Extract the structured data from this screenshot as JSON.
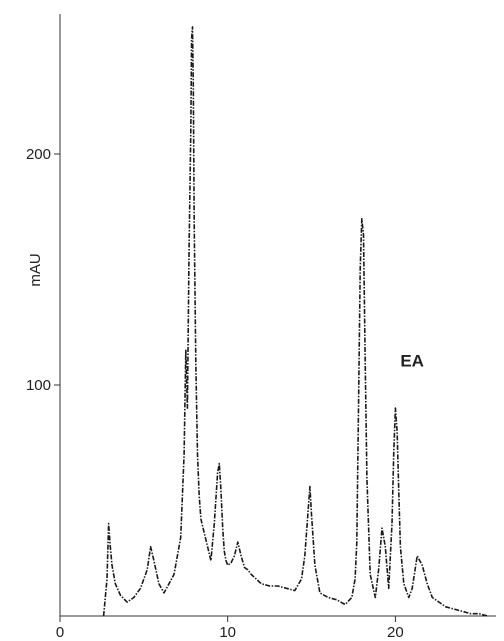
{
  "chart_data": {
    "type": "line",
    "title": "",
    "xlabel": "",
    "ylabel": "mAU",
    "xlim": [
      0,
      26
    ],
    "ylim": [
      0,
      255
    ],
    "x_ticks": [
      0,
      10,
      20
    ],
    "y_ticks": [
      100,
      200
    ],
    "grid": false,
    "annotations": [
      {
        "text": "EA",
        "x": 21,
        "y": 108
      }
    ],
    "series": [
      {
        "name": "",
        "x": [
          2.6,
          2.8,
          2.9,
          3.0,
          3.1,
          3.3,
          3.6,
          4.0,
          4.4,
          4.8,
          5.2,
          5.4,
          5.6,
          5.9,
          6.2,
          6.5,
          6.8,
          7.0,
          7.2,
          7.4,
          7.5,
          7.6,
          7.7,
          7.8,
          7.85,
          7.9,
          7.95,
          8.0,
          8.1,
          8.2,
          8.3,
          8.4,
          8.6,
          8.8,
          9.0,
          9.2,
          9.4,
          9.5,
          9.6,
          9.7,
          9.8,
          9.9,
          10.0,
          10.2,
          10.4,
          10.6,
          10.8,
          11.0,
          11.2,
          11.4,
          11.7,
          12.0,
          12.5,
          13.0,
          13.5,
          14.0,
          14.4,
          14.6,
          14.8,
          14.9,
          15.0,
          15.2,
          15.5,
          16.0,
          16.5,
          17.0,
          17.4,
          17.6,
          17.7,
          17.8,
          17.9,
          18.0,
          18.1,
          18.2,
          18.3,
          18.5,
          18.8,
          19.0,
          19.2,
          19.4,
          19.6,
          19.8,
          19.9,
          20.0,
          20.1,
          20.2,
          20.3,
          20.5,
          20.8,
          21.0,
          21.3,
          21.6,
          21.9,
          22.2,
          22.6,
          23.0,
          23.5,
          24.0,
          24.5,
          25.0,
          25.5
        ],
        "y": [
          0,
          16,
          40,
          30,
          22,
          14,
          9,
          6,
          8,
          12,
          20,
          30,
          24,
          14,
          10,
          14,
          18,
          26,
          34,
          70,
          115,
          90,
          160,
          210,
          250,
          255,
          230,
          170,
          110,
          70,
          52,
          42,
          36,
          30,
          24,
          40,
          62,
          66,
          54,
          38,
          28,
          24,
          22,
          23,
          26,
          32,
          26,
          21,
          20,
          18,
          16,
          14,
          13,
          13,
          12,
          11,
          16,
          26,
          46,
          56,
          44,
          22,
          10,
          8,
          7,
          5,
          8,
          16,
          32,
          90,
          150,
          172,
          165,
          110,
          60,
          18,
          8,
          20,
          38,
          30,
          12,
          40,
          70,
          90,
          80,
          55,
          30,
          14,
          8,
          12,
          26,
          22,
          14,
          8,
          6,
          4,
          3,
          2,
          1,
          1,
          0
        ]
      }
    ]
  }
}
